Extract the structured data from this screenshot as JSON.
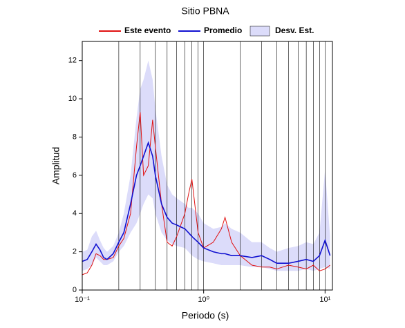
{
  "chart_data": {
    "type": "line",
    "title": "Sitio PBNA",
    "xlabel": "Periodo (s)",
    "ylabel": "Amplitud",
    "log_x": true,
    "x": [
      0.1,
      0.11,
      0.12,
      0.13,
      0.14,
      0.15,
      0.16,
      0.18,
      0.2,
      0.22,
      0.25,
      0.28,
      0.3,
      0.32,
      0.35,
      0.38,
      0.4,
      0.45,
      0.5,
      0.55,
      0.6,
      0.7,
      0.75,
      0.8,
      0.9,
      1.0,
      1.2,
      1.4,
      1.5,
      1.7,
      2.0,
      2.5,
      3.0,
      3.5,
      4,
      5,
      6,
      7,
      8,
      9,
      10,
      11
    ],
    "band": {
      "name": "Desv. Est.",
      "color": "#dcdcfa",
      "upper": [
        2.0,
        2.1,
        2.8,
        3.1,
        2.6,
        2.2,
        2.0,
        2.3,
        3.0,
        4.0,
        6.0,
        9.0,
        10.5,
        11.0,
        12.0,
        11.0,
        9.5,
        7.0,
        5.5,
        5.0,
        4.8,
        4.5,
        4.3,
        4.3,
        4.0,
        3.5,
        3.2,
        3.3,
        3.5,
        3.2,
        3.0,
        2.5,
        2.5,
        2.2,
        2.0,
        2.2,
        2.3,
        2.5,
        2.4,
        3.0,
        6.3,
        2.8
      ],
      "lower": [
        1.0,
        1.1,
        1.3,
        1.7,
        1.5,
        1.3,
        1.3,
        1.5,
        2.0,
        2.3,
        3.0,
        3.5,
        4.0,
        4.5,
        5.0,
        4.8,
        4.0,
        3.0,
        2.6,
        2.4,
        2.3,
        2.2,
        2.0,
        1.8,
        1.6,
        1.5,
        1.4,
        1.3,
        1.3,
        1.3,
        1.3,
        1.2,
        1.2,
        1.1,
        1.0,
        1.0,
        1.0,
        1.1,
        1.0,
        1.1,
        1.2,
        1.1
      ]
    },
    "series": [
      {
        "name": "Este evento",
        "color": "#e01010",
        "values": [
          0.8,
          0.9,
          1.3,
          1.9,
          1.8,
          1.6,
          1.6,
          1.7,
          2.3,
          2.7,
          4.0,
          7.5,
          9.3,
          6.0,
          6.5,
          8.9,
          7.5,
          4.5,
          2.5,
          2.3,
          2.8,
          4.0,
          5.0,
          5.8,
          3.0,
          2.2,
          2.5,
          3.2,
          3.8,
          2.5,
          1.8,
          1.3,
          1.2,
          1.2,
          1.1,
          1.3,
          1.2,
          1.1,
          1.3,
          1.0,
          1.1,
          1.3
        ]
      },
      {
        "name": "Promedio",
        "color": "#1010d0",
        "values": [
          1.5,
          1.6,
          2.0,
          2.4,
          2.1,
          1.7,
          1.6,
          1.9,
          2.5,
          3.0,
          4.5,
          6.0,
          6.5,
          7.0,
          7.7,
          7.0,
          6.0,
          4.5,
          3.8,
          3.5,
          3.4,
          3.2,
          3.0,
          2.8,
          2.5,
          2.2,
          2.0,
          1.9,
          1.9,
          1.8,
          1.8,
          1.7,
          1.8,
          1.6,
          1.4,
          1.4,
          1.5,
          1.6,
          1.5,
          1.8,
          2.6,
          1.8
        ]
      }
    ],
    "xlim": [
      0.1,
      11.5
    ],
    "ylim": [
      0,
      13
    ],
    "xticks": [
      {
        "value": 0.1,
        "label": "10⁻¹"
      },
      {
        "value": 1,
        "label": "10⁰"
      },
      {
        "value": 10,
        "label": "10¹"
      }
    ],
    "xgrid": [
      0.2,
      0.3,
      0.4,
      0.5,
      0.6,
      0.7,
      0.8,
      0.9,
      1,
      2,
      3,
      4,
      5,
      6,
      7,
      8,
      9,
      10
    ],
    "yticks": [
      0,
      2,
      4,
      6,
      8,
      10,
      12
    ]
  }
}
